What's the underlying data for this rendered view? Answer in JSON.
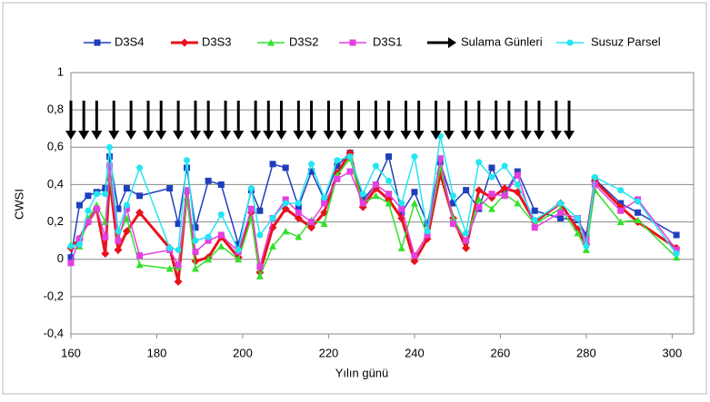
{
  "chart_data": {
    "type": "line",
    "xlabel": "Yılın günü",
    "ylabel": "CWSI",
    "xlim": [
      160,
      305
    ],
    "xticks": [
      160,
      180,
      200,
      220,
      240,
      260,
      280,
      300
    ],
    "ylim": [
      -0.4,
      1
    ],
    "yticks": [
      {
        "value": -0.4,
        "label": "-0,4"
      },
      {
        "value": -0.2,
        "label": "-0,2"
      },
      0,
      {
        "value": 0.2,
        "label": "0,2"
      },
      {
        "value": 0.4,
        "label": "0,4"
      },
      {
        "value": 0.6,
        "label": "0,6"
      },
      {
        "value": 0.8,
        "label": "0,8"
      },
      1
    ],
    "grid": true,
    "legend": "top",
    "x": [
      160,
      162,
      164,
      166,
      168,
      169,
      171,
      173,
      176,
      183,
      185,
      187,
      189,
      192,
      195,
      199,
      202,
      204,
      207,
      210,
      213,
      216,
      219,
      222,
      225,
      228,
      231,
      234,
      237,
      240,
      243,
      246,
      249,
      252,
      255,
      258,
      261,
      264,
      268,
      274,
      278,
      280,
      282,
      288,
      292,
      301
    ],
    "series": [
      {
        "name": "D3S4",
        "color": "#1f3fbf",
        "marker": "square",
        "width": 1.5,
        "values": [
          0.01,
          0.29,
          0.34,
          0.36,
          0.38,
          0.55,
          0.27,
          0.38,
          0.34,
          0.38,
          0.19,
          0.49,
          0.17,
          0.42,
          0.4,
          0.08,
          0.37,
          0.26,
          0.51,
          0.49,
          0.28,
          0.47,
          0.32,
          0.5,
          0.57,
          0.32,
          0.4,
          0.55,
          0.25,
          0.36,
          0.19,
          0.52,
          0.3,
          0.37,
          0.27,
          0.49,
          0.35,
          0.47,
          0.26,
          0.22,
          0.21,
          0.13,
          0.43,
          0.3,
          0.25,
          0.13
        ]
      },
      {
        "name": "D3S3",
        "color": "#e8121b",
        "marker": "diamond",
        "width": 3,
        "values": [
          0.06,
          0.11,
          0.2,
          0.27,
          0.03,
          0.43,
          0.05,
          0.15,
          0.25,
          0.06,
          -0.12,
          0.36,
          -0.01,
          0.01,
          0.12,
          0.01,
          0.25,
          -0.07,
          0.17,
          0.27,
          0.22,
          0.17,
          0.25,
          0.46,
          0.57,
          0.28,
          0.38,
          0.32,
          0.22,
          -0.01,
          0.11,
          0.46,
          0.22,
          0.06,
          0.37,
          0.33,
          0.38,
          0.36,
          0.2,
          0.3,
          0.16,
          0.08,
          0.42,
          0.28,
          0.2,
          0.06
        ]
      },
      {
        "name": "D3S2",
        "color": "#33e02b",
        "marker": "triangle",
        "width": 1.5,
        "values": [
          0.08,
          0.07,
          0.22,
          0.29,
          0.2,
          0.45,
          0.12,
          0.22,
          -0.03,
          -0.05,
          -0.04,
          0.33,
          -0.05,
          0.0,
          0.07,
          0.0,
          0.22,
          -0.09,
          0.07,
          0.15,
          0.12,
          0.21,
          0.19,
          0.45,
          0.54,
          0.3,
          0.34,
          0.3,
          0.06,
          0.3,
          0.13,
          0.49,
          0.22,
          0.1,
          0.32,
          0.27,
          0.35,
          0.3,
          0.19,
          0.27,
          0.14,
          0.05,
          0.37,
          0.2,
          0.21,
          0.01
        ]
      },
      {
        "name": "D3S1",
        "color": "#e43fe0",
        "marker": "square",
        "width": 1.5,
        "values": [
          -0.02,
          0.11,
          0.2,
          0.27,
          0.12,
          0.5,
          0.1,
          0.27,
          0.02,
          0.05,
          -0.03,
          0.37,
          0.04,
          0.1,
          0.13,
          0.04,
          0.27,
          -0.04,
          0.22,
          0.32,
          0.25,
          0.2,
          0.3,
          0.43,
          0.47,
          0.3,
          0.4,
          0.35,
          0.27,
          0.02,
          0.13,
          0.54,
          0.19,
          0.1,
          0.28,
          0.35,
          0.34,
          0.45,
          0.17,
          0.25,
          0.22,
          0.1,
          0.4,
          0.26,
          0.32,
          0.05
        ]
      },
      {
        "name": "Susuz Parsel",
        "color": "#22e6f2",
        "marker": "circle",
        "width": 1.5,
        "values": [
          0.07,
          0.08,
          0.26,
          0.35,
          0.35,
          0.6,
          0.15,
          0.29,
          0.49,
          0.06,
          0.05,
          0.53,
          0.1,
          0.12,
          0.24,
          0.05,
          0.38,
          0.13,
          0.22,
          0.3,
          0.3,
          0.51,
          0.33,
          0.53,
          0.55,
          0.35,
          0.5,
          0.42,
          0.3,
          0.55,
          0.15,
          0.66,
          0.34,
          0.14,
          0.52,
          0.44,
          0.5,
          0.4,
          0.21,
          0.3,
          0.22,
          0.07,
          0.44,
          0.37,
          0.31,
          0.03
        ]
      }
    ],
    "arrows": {
      "name": "Sulama Günleri",
      "color": "#000000",
      "x": [
        160,
        163,
        166,
        170,
        174,
        178,
        181,
        185,
        189,
        192,
        196,
        199,
        203,
        206,
        209,
        213,
        216,
        220,
        223,
        227,
        231,
        234,
        238,
        241,
        245,
        248,
        252,
        255,
        259,
        262,
        266,
        269,
        273,
        276
      ],
      "y_start": 0.85,
      "y_end": 0.64
    }
  }
}
